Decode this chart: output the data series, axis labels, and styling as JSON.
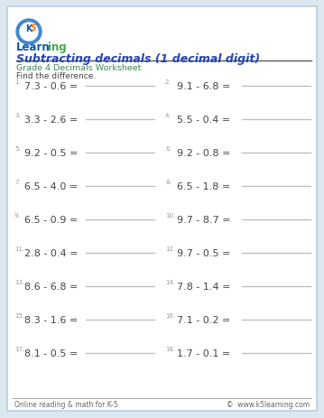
{
  "title": "Subtracting decimals (1 decimal digit)",
  "subtitle": "Grade 4 Decimals Worksheet",
  "instruction": "Find the difference.",
  "problems": [
    [
      "7.3 - 0.6 =",
      "9.1 - 6.8 ="
    ],
    [
      "3.3 - 2.6 =",
      "5.5 - 0.4 ="
    ],
    [
      "9.2 - 0.5 =",
      "9.2 - 0.8 ="
    ],
    [
      "6.5 - 4.0 =",
      "6.5 - 1.8 ="
    ],
    [
      "6.5 - 0.9 =",
      "9.7 - 8.7 ="
    ],
    [
      "2.8 - 0.4 =",
      "9.7 - 0.5 ="
    ],
    [
      "8.6 - 6.8 =",
      "7.8 - 1.4 ="
    ],
    [
      "8.3 - 1.6 =",
      "7.1 - 0.2 ="
    ],
    [
      "8.1 - 0.5 =",
      "1.7 - 0.1 ="
    ]
  ],
  "numbers_left": [
    1,
    3,
    5,
    7,
    9,
    11,
    13,
    15,
    17
  ],
  "numbers_right": [
    2,
    4,
    6,
    8,
    10,
    12,
    14,
    16,
    18
  ],
  "footer_left": "Online reading & math for K-5",
  "footer_right": "©  www.k5learning.com",
  "border_color": "#b8cfe0",
  "title_color": "#2244bb",
  "subtitle_color": "#3a8a50",
  "title_underline_color": "#555555",
  "problem_color": "#444444",
  "line_color": "#bbbbbb",
  "footer_color": "#666666",
  "bg_color": "#ffffff",
  "outer_bg": "#dce8f0",
  "number_color": "#999999",
  "logo_k5_blue": "#1155aa",
  "logo_learn_blue": "#1155aa",
  "logo_ing_green": "#44aa44",
  "logo_5_orange": "#ff6600"
}
